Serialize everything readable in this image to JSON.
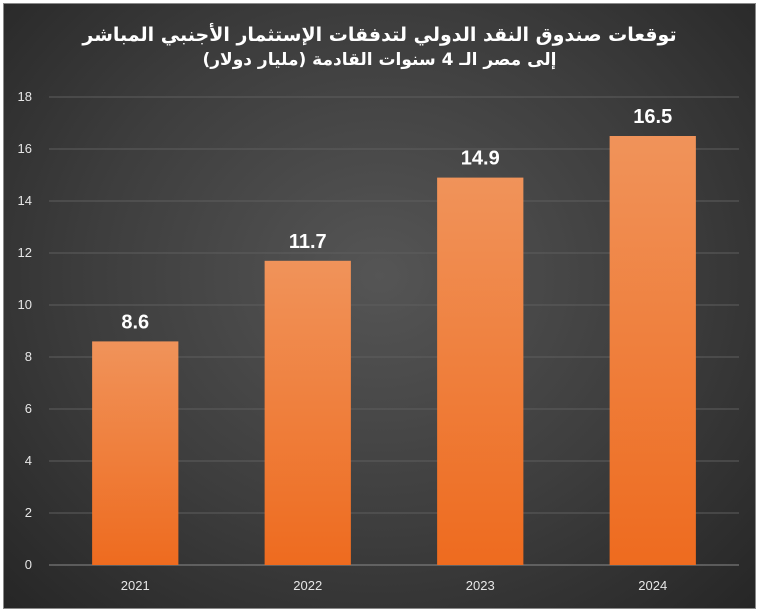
{
  "chart_data": {
    "type": "bar",
    "title": "توقعات صندوق النقد الدولي لتدفقات الإستثمار الأجنبي المباشر",
    "subtitle": "إلى مصر الـ 4 سنوات القادمة (مليار دولار)",
    "categories": [
      "2021",
      "2022",
      "2023",
      "2024"
    ],
    "values": [
      8.6,
      11.7,
      14.9,
      16.5
    ],
    "data_labels": [
      "8.6",
      "11.7",
      "14.9",
      "16.5"
    ],
    "y_ticks": [
      0,
      2,
      4,
      6,
      8,
      10,
      12,
      14,
      16,
      18
    ],
    "ylim": [
      0,
      18
    ],
    "grid": true,
    "legend": "none",
    "colors": {
      "bar_top": "#f0935a",
      "bar_bottom": "#ee6b1f",
      "grid": "#5e5e5e",
      "background": "#3d3d3d"
    }
  }
}
